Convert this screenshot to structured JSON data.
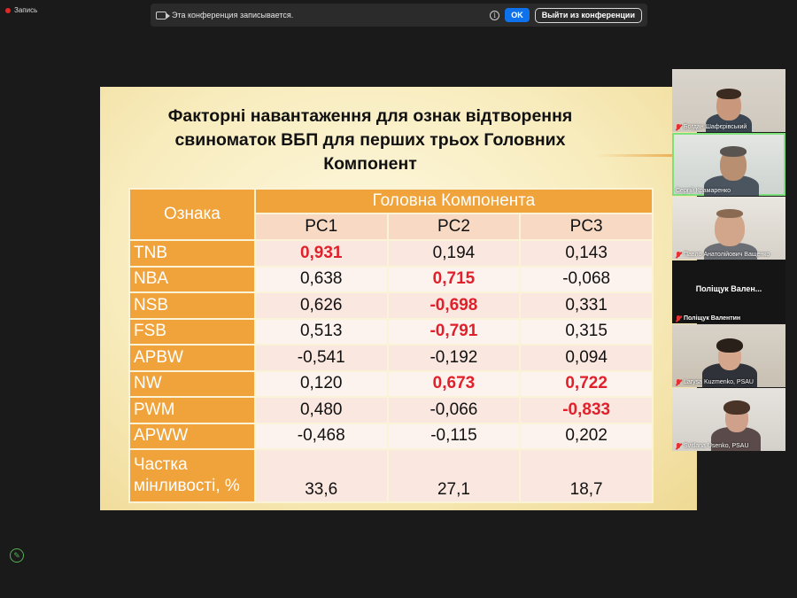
{
  "recording": {
    "label": "Запись",
    "icon": "record-dot-icon"
  },
  "notification": {
    "icon": "camera-icon",
    "text": "Эта конференция записывается.",
    "info_icon": "info-icon",
    "ok_label": "OK",
    "leave_label": "Выйти из конференции"
  },
  "slide": {
    "title_lines": [
      "Факторні навантаження для ознак відтворення",
      "свиноматок ВБП для перших трьох Головних",
      "Компонент"
    ],
    "table": {
      "label_header": "Ознака",
      "group_header": "Головна Компонента",
      "pc_headers": [
        "PC1",
        "PC2",
        "PC3"
      ],
      "rows": [
        {
          "label": "TNB",
          "values": [
            "0,931",
            "0,194",
            "0,143"
          ],
          "highlight": [
            true,
            false,
            false
          ]
        },
        {
          "label": "NBA",
          "values": [
            "0,638",
            "0,715",
            "-0,068"
          ],
          "highlight": [
            false,
            true,
            false
          ]
        },
        {
          "label": "NSB",
          "values": [
            "0,626",
            "-0,698",
            "0,331"
          ],
          "highlight": [
            false,
            true,
            false
          ]
        },
        {
          "label": "FSB",
          "values": [
            "0,513",
            "-0,791",
            "0,315"
          ],
          "highlight": [
            false,
            true,
            false
          ]
        },
        {
          "label": "APBW",
          "values": [
            "-0,541",
            "-0,192",
            "0,094"
          ],
          "highlight": [
            false,
            false,
            false
          ]
        },
        {
          "label": "NW",
          "values": [
            "0,120",
            "0,673",
            "0,722"
          ],
          "highlight": [
            false,
            true,
            true
          ]
        },
        {
          "label": "PWM",
          "values": [
            "0,480",
            "-0,066",
            "-0,833"
          ],
          "highlight": [
            false,
            false,
            true
          ]
        },
        {
          "label": "APWW",
          "values": [
            "-0,468",
            "-0,115",
            "0,202"
          ],
          "highlight": [
            false,
            false,
            false
          ]
        }
      ],
      "share_label": [
        "Частка",
        "мінливості, %"
      ],
      "share_values": [
        "33,6",
        "27,1",
        "18,7"
      ]
    },
    "highlight_color": "#e0202a",
    "header_color": "#f0a33b"
  },
  "participants": [
    {
      "name": "Богдан Шафєрівський",
      "muted": true,
      "video": true,
      "active": false
    },
    {
      "name": "Сергій Крамаренко",
      "muted": false,
      "video": true,
      "active": true
    },
    {
      "name": "Павло Анатолійович Ващенко",
      "muted": true,
      "video": true,
      "active": false
    },
    {
      "name": "Поліщук Валентин",
      "center_name": "Поліщук Вален...",
      "muted": true,
      "video": false,
      "active": false
    },
    {
      "name": "Larysa Kuzmenko, PSAU",
      "muted": true,
      "video": true,
      "active": false
    },
    {
      "name": "Svitlana Usenko, PSAU",
      "muted": true,
      "video": true,
      "active": false
    }
  ],
  "security": {
    "icon": "shield-check-icon"
  }
}
